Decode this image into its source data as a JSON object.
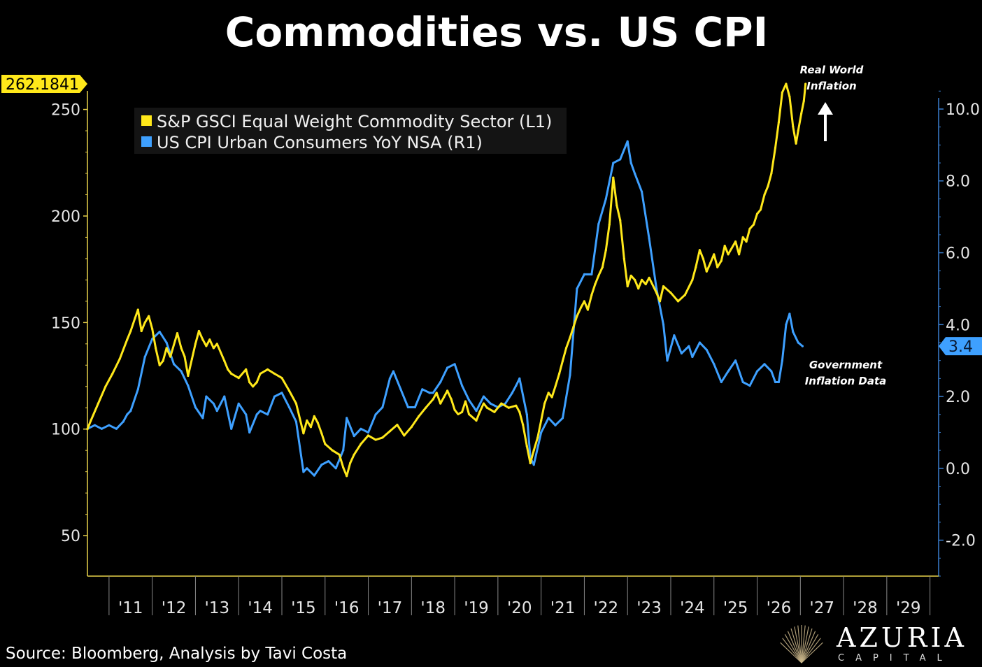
{
  "title": "Commodities vs. US CPI",
  "source": "Source: Bloomberg, Analysis by Tavi Costa",
  "logo": {
    "name": "AZURIA",
    "sub": "CAPITAL",
    "icon": "rays-logo-icon"
  },
  "colors": {
    "yellow": "#ffe81a",
    "blue": "#3ea0ff",
    "background": "#000000",
    "axis_left": "#e8d24a",
    "axis_right": "#3a7fd0"
  },
  "chart_data": {
    "type": "line",
    "title": "Commodities vs. US CPI",
    "legend_placement": "top-left",
    "grid": false,
    "x_ticks": [
      "'11",
      "'12",
      "'13",
      "'14",
      "'15",
      "'16",
      "'17",
      "'18",
      "'19",
      "'20",
      "'21",
      "'22",
      "'23",
      "'24",
      "'25",
      "'26",
      "'27",
      "'28",
      "'29"
    ],
    "xlim": [
      2010.0,
      2029.7
    ],
    "y_left": {
      "ticks": [
        "50",
        "100",
        "150",
        "200",
        "250"
      ],
      "ylim": [
        31,
        262
      ]
    },
    "y_right": {
      "ticks": [
        "-2.0",
        "0.0",
        "2.0",
        "4.0",
        "6.0",
        "8.0",
        "10.0"
      ],
      "ylim": [
        -3.0,
        10.7
      ]
    },
    "series": [
      {
        "name": "S&P GSCI Equal Weight Commodity Sector (L1)",
        "axis": "left",
        "color": "#ffe81a",
        "last_value_label": "262.1841",
        "points": [
          [
            2010.0,
            100
          ],
          [
            2010.08,
            104
          ],
          [
            2010.25,
            112
          ],
          [
            2010.42,
            120
          ],
          [
            2010.58,
            126
          ],
          [
            2010.75,
            133
          ],
          [
            2010.92,
            142
          ],
          [
            2011.0,
            146
          ],
          [
            2011.1,
            152
          ],
          [
            2011.17,
            156
          ],
          [
            2011.25,
            146
          ],
          [
            2011.33,
            150
          ],
          [
            2011.42,
            153
          ],
          [
            2011.5,
            147
          ],
          [
            2011.58,
            138
          ],
          [
            2011.67,
            130
          ],
          [
            2011.75,
            132
          ],
          [
            2011.83,
            138
          ],
          [
            2011.92,
            134
          ],
          [
            2012.08,
            145
          ],
          [
            2012.17,
            138
          ],
          [
            2012.25,
            134
          ],
          [
            2012.33,
            125
          ],
          [
            2012.42,
            133
          ],
          [
            2012.5,
            140
          ],
          [
            2012.58,
            146
          ],
          [
            2012.67,
            142
          ],
          [
            2012.75,
            139
          ],
          [
            2012.83,
            142
          ],
          [
            2012.92,
            138
          ],
          [
            2013.0,
            140
          ],
          [
            2013.17,
            132
          ],
          [
            2013.25,
            128
          ],
          [
            2013.33,
            126
          ],
          [
            2013.5,
            124
          ],
          [
            2013.67,
            128
          ],
          [
            2013.75,
            122
          ],
          [
            2013.83,
            120
          ],
          [
            2013.92,
            122
          ],
          [
            2014.0,
            126
          ],
          [
            2014.17,
            128
          ],
          [
            2014.33,
            126
          ],
          [
            2014.5,
            124
          ],
          [
            2014.67,
            118
          ],
          [
            2014.83,
            112
          ],
          [
            2015.0,
            98
          ],
          [
            2015.08,
            104
          ],
          [
            2015.17,
            101
          ],
          [
            2015.25,
            106
          ],
          [
            2015.33,
            103
          ],
          [
            2015.42,
            98
          ],
          [
            2015.5,
            93
          ],
          [
            2015.67,
            90
          ],
          [
            2015.83,
            88
          ],
          [
            2015.92,
            82
          ],
          [
            2016.0,
            78
          ],
          [
            2016.08,
            84
          ],
          [
            2016.17,
            88
          ],
          [
            2016.33,
            93
          ],
          [
            2016.5,
            97
          ],
          [
            2016.67,
            95
          ],
          [
            2016.83,
            96
          ],
          [
            2017.0,
            99
          ],
          [
            2017.17,
            102
          ],
          [
            2017.33,
            97
          ],
          [
            2017.5,
            101
          ],
          [
            2017.67,
            106
          ],
          [
            2017.83,
            110
          ],
          [
            2018.0,
            114
          ],
          [
            2018.08,
            117
          ],
          [
            2018.17,
            112
          ],
          [
            2018.25,
            115
          ],
          [
            2018.33,
            118
          ],
          [
            2018.42,
            114
          ],
          [
            2018.5,
            109
          ],
          [
            2018.58,
            107
          ],
          [
            2018.67,
            108
          ],
          [
            2018.75,
            113
          ],
          [
            2018.83,
            107
          ],
          [
            2019.0,
            104
          ],
          [
            2019.08,
            108
          ],
          [
            2019.17,
            112
          ],
          [
            2019.25,
            110
          ],
          [
            2019.42,
            108
          ],
          [
            2019.58,
            112
          ],
          [
            2019.75,
            110
          ],
          [
            2019.92,
            111
          ],
          [
            2020.0,
            108
          ],
          [
            2020.08,
            102
          ],
          [
            2020.17,
            92
          ],
          [
            2020.25,
            84
          ],
          [
            2020.33,
            90
          ],
          [
            2020.42,
            96
          ],
          [
            2020.5,
            104
          ],
          [
            2020.58,
            112
          ],
          [
            2020.67,
            117
          ],
          [
            2020.75,
            115
          ],
          [
            2020.83,
            120
          ],
          [
            2020.92,
            126
          ],
          [
            2021.0,
            132
          ],
          [
            2021.08,
            138
          ],
          [
            2021.17,
            143
          ],
          [
            2021.25,
            148
          ],
          [
            2021.33,
            153
          ],
          [
            2021.42,
            157
          ],
          [
            2021.5,
            160
          ],
          [
            2021.58,
            156
          ],
          [
            2021.67,
            163
          ],
          [
            2021.75,
            168
          ],
          [
            2021.83,
            172
          ],
          [
            2021.92,
            176
          ],
          [
            2022.0,
            184
          ],
          [
            2022.08,
            196
          ],
          [
            2022.17,
            218
          ],
          [
            2022.25,
            205
          ],
          [
            2022.33,
            198
          ],
          [
            2022.42,
            180
          ],
          [
            2022.5,
            167
          ],
          [
            2022.58,
            172
          ],
          [
            2022.67,
            170
          ],
          [
            2022.75,
            166
          ],
          [
            2022.83,
            170
          ],
          [
            2022.92,
            168
          ],
          [
            2023.0,
            171
          ],
          [
            2023.17,
            164
          ],
          [
            2023.25,
            160
          ],
          [
            2023.33,
            167
          ],
          [
            2023.5,
            164
          ],
          [
            2023.67,
            160
          ],
          [
            2023.83,
            163
          ],
          [
            2024.0,
            170
          ],
          [
            2024.08,
            176
          ],
          [
            2024.17,
            184
          ],
          [
            2024.25,
            180
          ],
          [
            2024.33,
            174
          ],
          [
            2024.42,
            178
          ],
          [
            2024.5,
            182
          ],
          [
            2024.58,
            176
          ],
          [
            2024.67,
            179
          ],
          [
            2024.75,
            186
          ],
          [
            2024.83,
            182
          ],
          [
            2025.0,
            188
          ],
          [
            2025.08,
            182
          ],
          [
            2025.17,
            190
          ],
          [
            2025.25,
            188
          ],
          [
            2025.33,
            194
          ],
          [
            2025.42,
            196
          ],
          [
            2025.5,
            201
          ],
          [
            2025.58,
            203
          ],
          [
            2025.67,
            210
          ],
          [
            2025.75,
            214
          ],
          [
            2025.83,
            220
          ],
          [
            2025.92,
            232
          ],
          [
            2026.0,
            244
          ],
          [
            2026.08,
            258
          ],
          [
            2026.17,
            262
          ],
          [
            2026.25,
            256
          ],
          [
            2026.33,
            242
          ],
          [
            2026.4,
            234
          ],
          [
            2026.45,
            240
          ],
          [
            2026.52,
            248
          ],
          [
            2026.58,
            254
          ],
          [
            2026.62,
            262
          ]
        ]
      },
      {
        "name": "US CPI Urban Consumers YoY NSA (R1)",
        "axis": "right",
        "color": "#3ea0ff",
        "last_value_label": "3.4",
        "points": [
          [
            2010.0,
            1.1
          ],
          [
            2010.17,
            1.2
          ],
          [
            2010.33,
            1.1
          ],
          [
            2010.5,
            1.2
          ],
          [
            2010.67,
            1.1
          ],
          [
            2010.83,
            1.3
          ],
          [
            2010.92,
            1.5
          ],
          [
            2011.0,
            1.6
          ],
          [
            2011.17,
            2.2
          ],
          [
            2011.33,
            3.1
          ],
          [
            2011.5,
            3.6
          ],
          [
            2011.67,
            3.8
          ],
          [
            2011.83,
            3.5
          ],
          [
            2012.0,
            2.9
          ],
          [
            2012.17,
            2.7
          ],
          [
            2012.33,
            2.3
          ],
          [
            2012.5,
            1.7
          ],
          [
            2012.67,
            1.4
          ],
          [
            2012.75,
            2.0
          ],
          [
            2012.92,
            1.8
          ],
          [
            2013.0,
            1.6
          ],
          [
            2013.17,
            2.0
          ],
          [
            2013.33,
            1.1
          ],
          [
            2013.5,
            1.8
          ],
          [
            2013.67,
            1.5
          ],
          [
            2013.75,
            1.0
          ],
          [
            2013.92,
            1.5
          ],
          [
            2014.0,
            1.6
          ],
          [
            2014.17,
            1.5
          ],
          [
            2014.33,
            2.0
          ],
          [
            2014.5,
            2.1
          ],
          [
            2014.67,
            1.7
          ],
          [
            2014.83,
            1.3
          ],
          [
            2015.0,
            -0.1
          ],
          [
            2015.08,
            0.0
          ],
          [
            2015.25,
            -0.2
          ],
          [
            2015.42,
            0.1
          ],
          [
            2015.58,
            0.2
          ],
          [
            2015.75,
            0.0
          ],
          [
            2015.92,
            0.5
          ],
          [
            2016.0,
            1.4
          ],
          [
            2016.17,
            0.9
          ],
          [
            2016.33,
            1.1
          ],
          [
            2016.5,
            1.0
          ],
          [
            2016.67,
            1.5
          ],
          [
            2016.83,
            1.7
          ],
          [
            2017.0,
            2.5
          ],
          [
            2017.08,
            2.7
          ],
          [
            2017.25,
            2.2
          ],
          [
            2017.42,
            1.7
          ],
          [
            2017.58,
            1.7
          ],
          [
            2017.75,
            2.2
          ],
          [
            2017.92,
            2.1
          ],
          [
            2018.0,
            2.1
          ],
          [
            2018.17,
            2.4
          ],
          [
            2018.33,
            2.8
          ],
          [
            2018.5,
            2.9
          ],
          [
            2018.67,
            2.3
          ],
          [
            2018.83,
            1.9
          ],
          [
            2019.0,
            1.6
          ],
          [
            2019.17,
            2.0
          ],
          [
            2019.33,
            1.8
          ],
          [
            2019.5,
            1.7
          ],
          [
            2019.67,
            1.8
          ],
          [
            2019.83,
            2.1
          ],
          [
            2019.92,
            2.3
          ],
          [
            2020.0,
            2.5
          ],
          [
            2020.17,
            1.5
          ],
          [
            2020.25,
            0.3
          ],
          [
            2020.33,
            0.1
          ],
          [
            2020.5,
            1.0
          ],
          [
            2020.67,
            1.4
          ],
          [
            2020.83,
            1.2
          ],
          [
            2021.0,
            1.4
          ],
          [
            2021.17,
            2.6
          ],
          [
            2021.33,
            5.0
          ],
          [
            2021.5,
            5.4
          ],
          [
            2021.67,
            5.4
          ],
          [
            2021.83,
            6.8
          ],
          [
            2022.0,
            7.5
          ],
          [
            2022.17,
            8.5
          ],
          [
            2022.33,
            8.6
          ],
          [
            2022.5,
            9.1
          ],
          [
            2022.58,
            8.5
          ],
          [
            2022.67,
            8.2
          ],
          [
            2022.83,
            7.7
          ],
          [
            2023.0,
            6.4
          ],
          [
            2023.17,
            5.0
          ],
          [
            2023.33,
            4.0
          ],
          [
            2023.42,
            3.0
          ],
          [
            2023.58,
            3.7
          ],
          [
            2023.75,
            3.2
          ],
          [
            2023.92,
            3.4
          ],
          [
            2024.0,
            3.1
          ],
          [
            2024.17,
            3.5
          ],
          [
            2024.33,
            3.3
          ],
          [
            2024.5,
            2.9
          ],
          [
            2024.67,
            2.4
          ],
          [
            2024.83,
            2.7
          ],
          [
            2025.0,
            3.0
          ],
          [
            2025.17,
            2.4
          ],
          [
            2025.33,
            2.3
          ],
          [
            2025.5,
            2.7
          ],
          [
            2025.67,
            2.9
          ],
          [
            2025.83,
            2.7
          ],
          [
            2025.92,
            2.4
          ],
          [
            2026.0,
            2.4
          ],
          [
            2026.08,
            3.0
          ],
          [
            2026.17,
            4.0
          ],
          [
            2026.25,
            4.3
          ],
          [
            2026.33,
            3.8
          ],
          [
            2026.45,
            3.5
          ],
          [
            2026.55,
            3.4
          ]
        ]
      }
    ],
    "annotations": [
      {
        "id": "real",
        "lines": [
          "Real World",
          "Inflation"
        ],
        "arrow": "up"
      },
      {
        "id": "gov",
        "lines": [
          "Government",
          "Inflation Data"
        ]
      }
    ]
  }
}
